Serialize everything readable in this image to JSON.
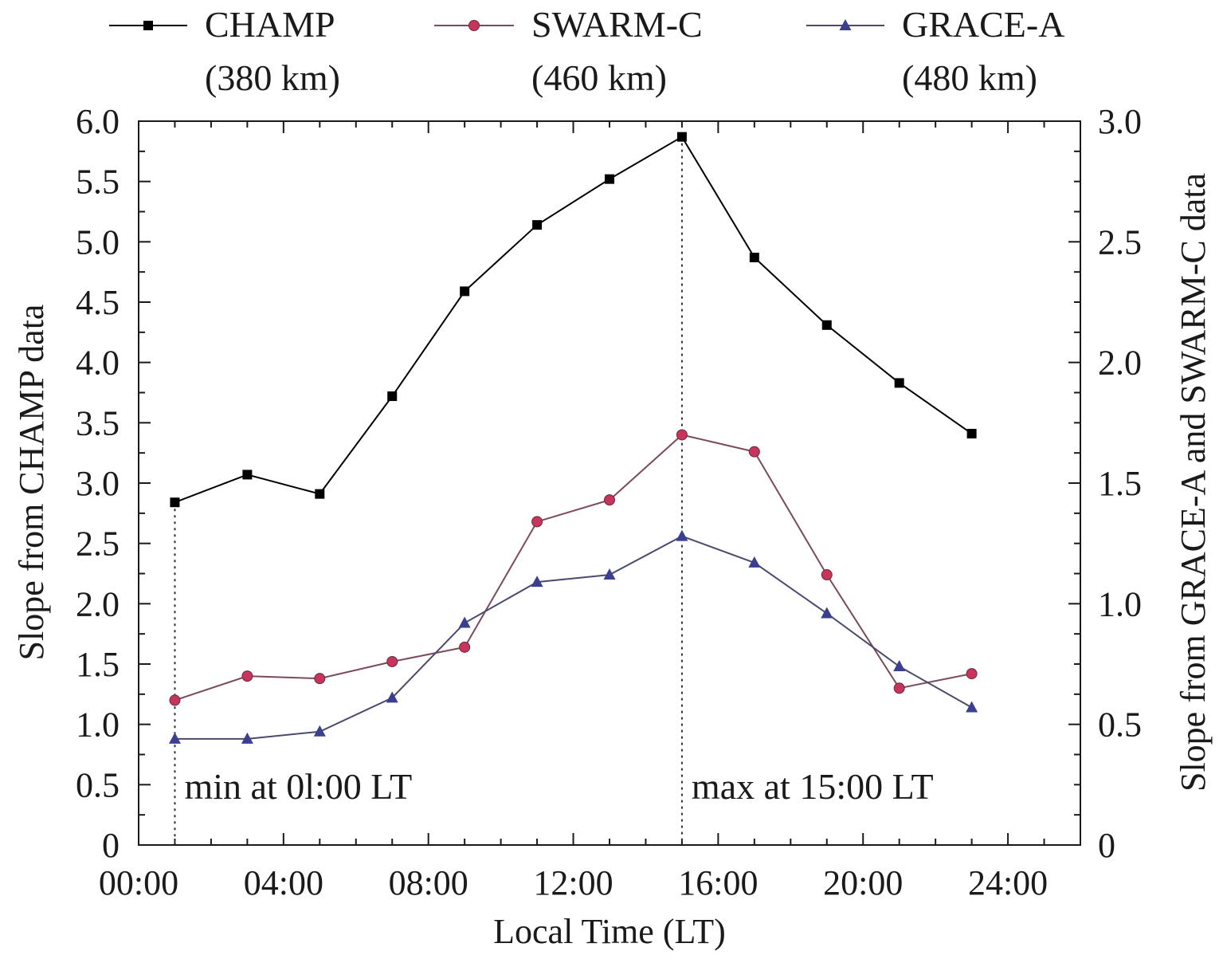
{
  "chart_data": {
    "type": "line",
    "xlabel": "Local Time (LT)",
    "ylabel_left": "Slope from CHAMP data",
    "ylabel_right": "Slope from GRACE-A and SWARM-C data",
    "x_axis": {
      "min": 0,
      "max": 26,
      "ticks": [
        0,
        4,
        8,
        12,
        16,
        20,
        24
      ],
      "tick_labels": [
        "00:00",
        "04:00",
        "08:00",
        "12:00",
        "16:00",
        "20:00",
        "24:00"
      ],
      "minor_step": 1
    },
    "y_left": {
      "min": 0,
      "max": 6,
      "ticks": [
        0,
        0.5,
        1,
        1.5,
        2,
        2.5,
        3,
        3.5,
        4,
        4.5,
        5,
        5.5,
        6
      ],
      "tick_labels": [
        "0",
        "0.5",
        "1.0",
        "1.5",
        "2.0",
        "2.5",
        "3.0",
        "3.5",
        "4.0",
        "4.5",
        "5.0",
        "5.5",
        "6.0"
      ],
      "minor_step": 0.25
    },
    "y_right": {
      "min": 0,
      "max": 3,
      "ticks": [
        0,
        0.5,
        1,
        1.5,
        2,
        2.5,
        3
      ],
      "tick_labels": [
        "0",
        "0.5",
        "1.0",
        "1.5",
        "2.0",
        "2.5",
        "3.0"
      ],
      "minor_step": 0.125
    },
    "x": [
      1,
      3,
      5,
      7,
      9,
      11,
      13,
      15,
      17,
      19,
      21,
      23
    ],
    "series": [
      {
        "name": "CHAMP",
        "legend_sub": "(380 km)",
        "axis": "left",
        "marker": "square",
        "color": "#000000",
        "values": [
          2.84,
          3.07,
          2.91,
          3.72,
          4.59,
          5.14,
          5.52,
          5.87,
          4.87,
          4.31,
          3.83,
          3.41
        ]
      },
      {
        "name": "SWARM-C",
        "legend_sub": "(460 km)",
        "axis": "right",
        "marker": "circle",
        "color": "#c8345a",
        "line_color": "#7a4a5e",
        "values": [
          0.6,
          0.7,
          0.69,
          0.76,
          0.82,
          1.34,
          1.43,
          1.7,
          1.63,
          1.12,
          0.65,
          0.71
        ]
      },
      {
        "name": "GRACE-A",
        "legend_sub": "(480 km)",
        "axis": "right",
        "marker": "triangle",
        "color": "#3b3f8f",
        "line_color": "#4a4a6e",
        "values": [
          0.44,
          0.44,
          0.47,
          0.61,
          0.92,
          1.09,
          1.12,
          1.28,
          1.17,
          0.96,
          0.74,
          0.57
        ]
      }
    ],
    "annotations": [
      {
        "text": "min at 0l:00 LT",
        "x": 1
      },
      {
        "text": "max at 15:00 LT",
        "x": 15
      }
    ],
    "legend": "top",
    "grid": false
  }
}
